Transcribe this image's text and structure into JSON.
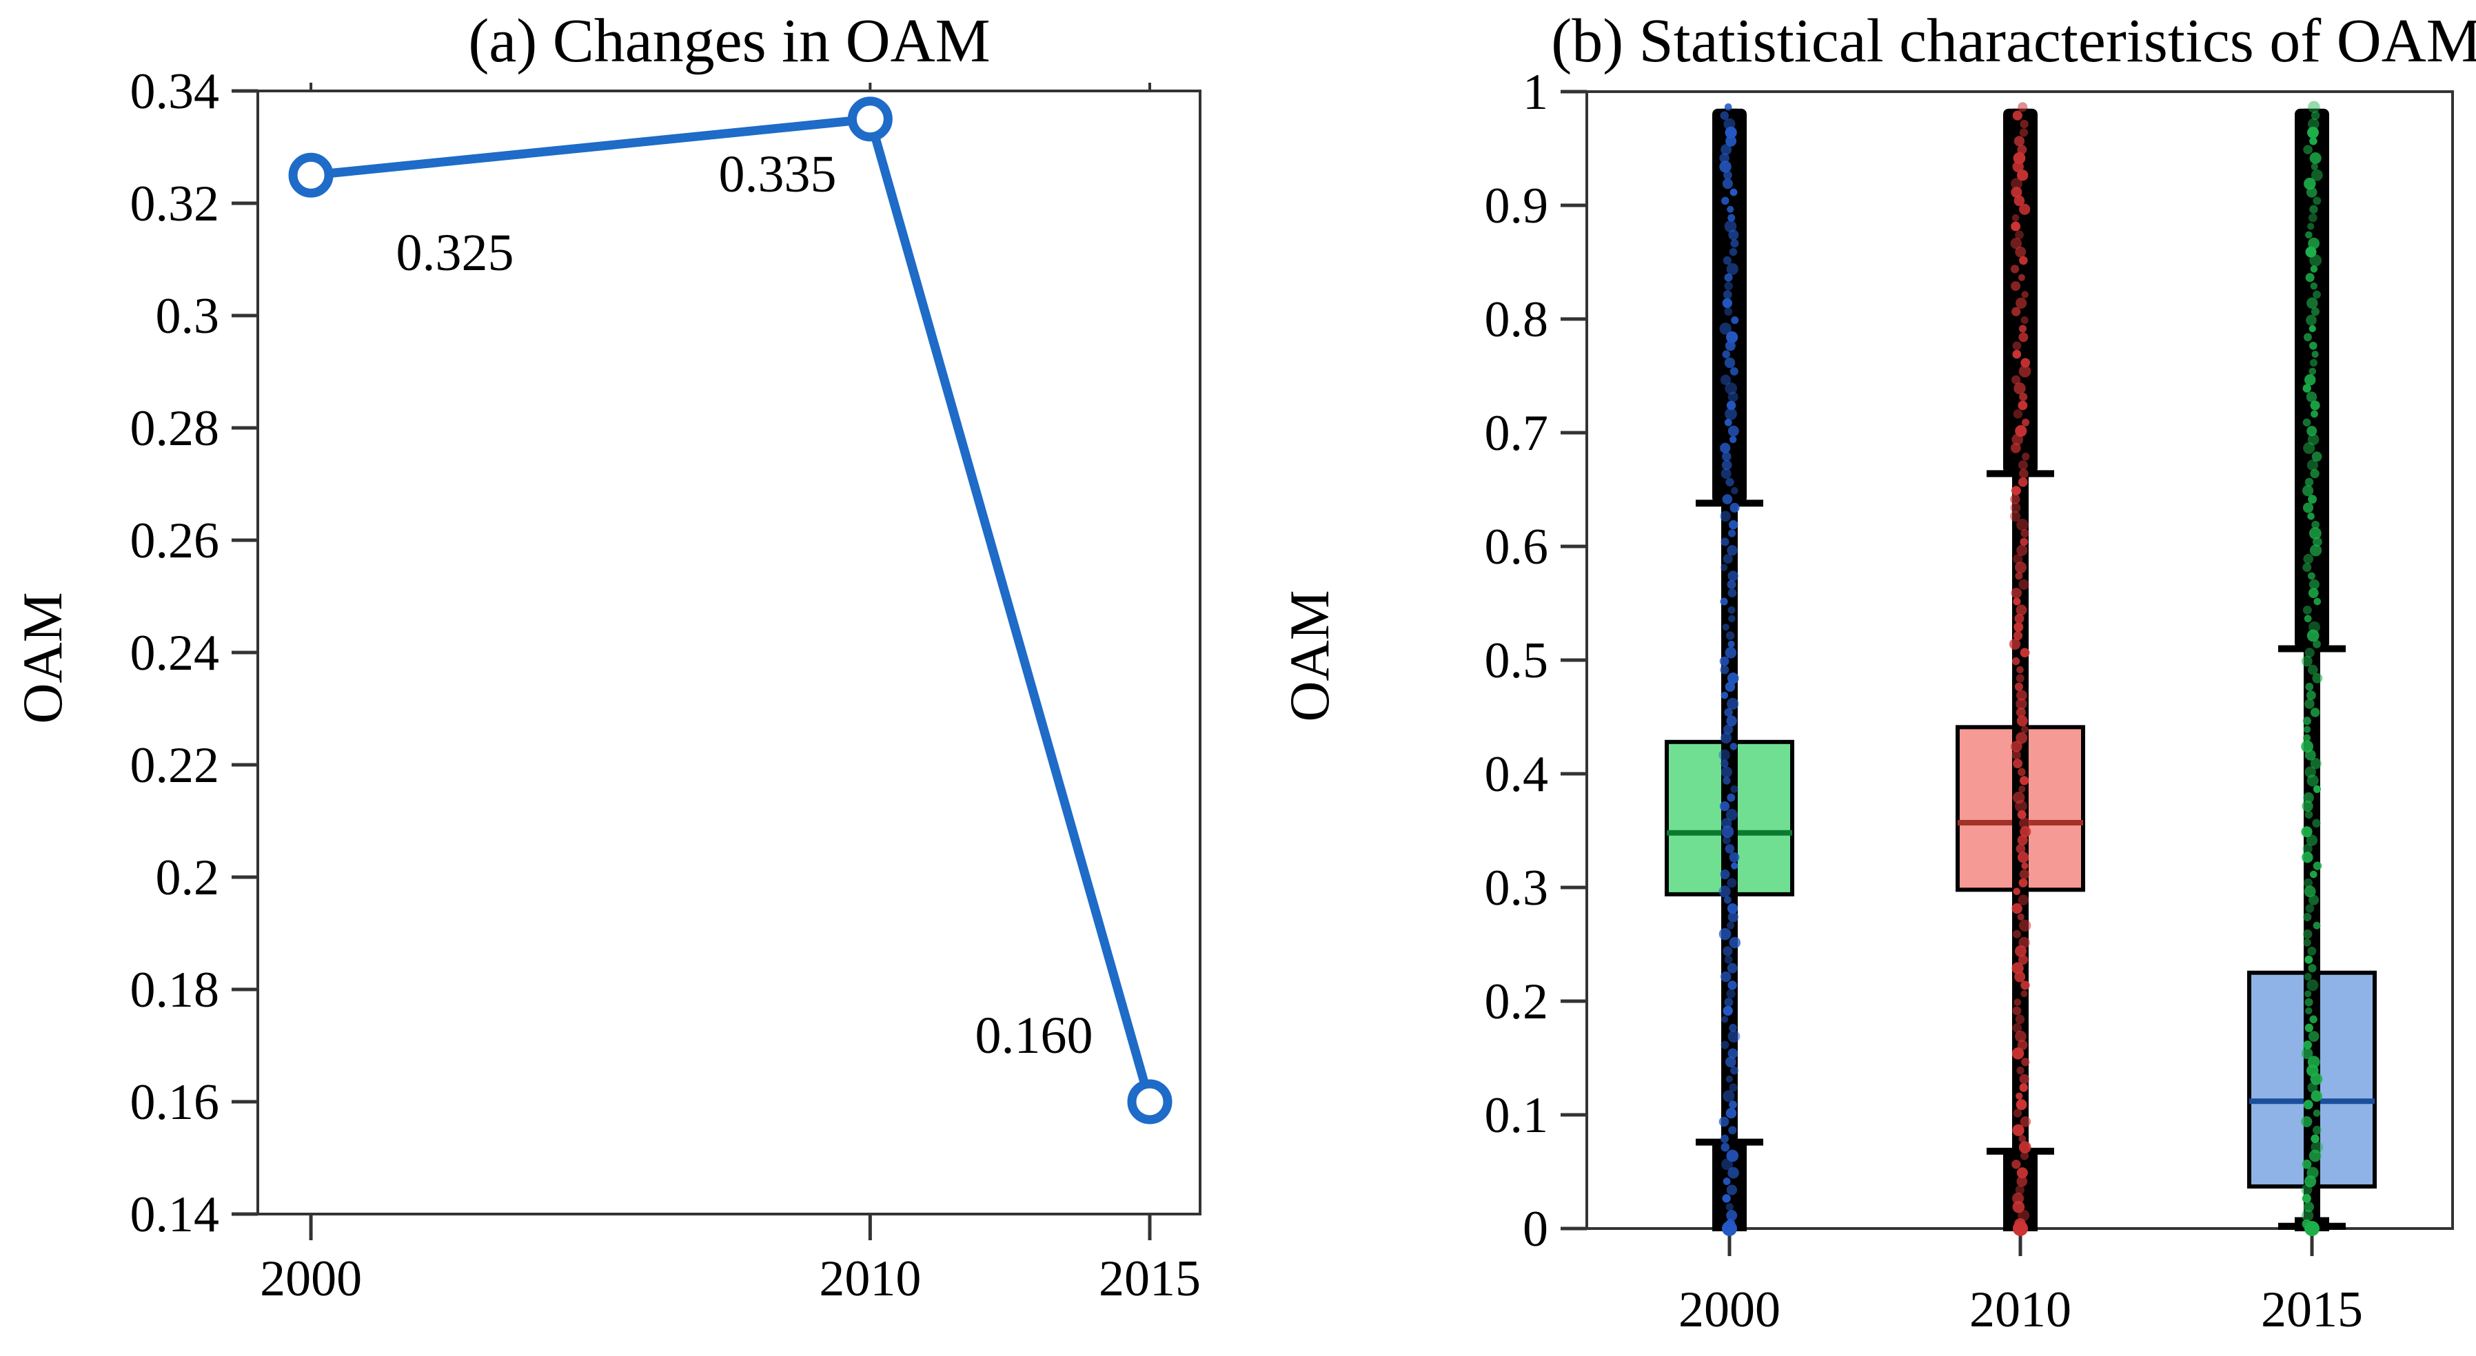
{
  "figure": {
    "background": "#ffffff",
    "frame_color": "#333333"
  },
  "panel_a": {
    "title": "(a) Changes in OAM",
    "y_axis_label": "OAM"
  },
  "panel_b": {
    "title": "(b) Statistical characteristics of OAM",
    "y_axis_label": "OAM"
  },
  "chart_data": [
    {
      "type": "line",
      "panel": "a",
      "title": "(a) Changes in OAM",
      "xlabel": "",
      "ylabel": "OAM",
      "x": [
        2000,
        2010,
        2015
      ],
      "values": [
        0.325,
        0.335,
        0.16
      ],
      "point_labels": [
        "0.325",
        "0.335",
        "0.160"
      ],
      "x_tick_labels": [
        "2000",
        "2010",
        "2015"
      ],
      "y_tick_values": [
        0.34,
        0.32,
        0.3,
        0.28,
        0.26,
        0.24,
        0.22,
        0.2,
        0.18,
        0.16,
        0.14
      ],
      "y_tick_labels": [
        "0.34",
        "0.32",
        "0.3",
        "0.28",
        "0.26",
        "0.24",
        "0.22",
        "0.2",
        "0.18",
        "0.16",
        "0.14"
      ],
      "xlim": [
        1999.05,
        2015.9
      ],
      "ylim": [
        0.14,
        0.34
      ],
      "grid": false,
      "line_color": "#1e6bc8",
      "marker": "open-circle"
    },
    {
      "type": "box",
      "panel": "b",
      "title": "(b) Statistical characteristics of OAM",
      "xlabel": "",
      "ylabel": "OAM",
      "categories": [
        "2000",
        "2010",
        "2015"
      ],
      "y_tick_values": [
        1,
        0.9,
        0.8,
        0.7,
        0.6,
        0.5,
        0.4,
        0.3,
        0.2,
        0.1,
        0
      ],
      "y_tick_labels": [
        "1",
        "0.9",
        "0.8",
        "0.7",
        "0.6",
        "0.5",
        "0.4",
        "0.3",
        "0.2",
        "0.1",
        "0"
      ],
      "ylim": [
        0,
        1
      ],
      "grid": false,
      "series": [
        {
          "name": "2000",
          "whisker_low": 0.076,
          "q1": 0.294,
          "median": 0.348,
          "q3": 0.428,
          "whisker_high": 0.638,
          "outlier_low_range": [
            0.0,
            0.076
          ],
          "outlier_high_range": [
            0.638,
            0.985
          ],
          "box_color": "#71df92",
          "median_color": "#0c7a2e",
          "dot_color": "#2458c4"
        },
        {
          "name": "2010",
          "whisker_low": 0.068,
          "q1": 0.298,
          "median": 0.357,
          "q3": 0.441,
          "whisker_high": 0.664,
          "outlier_low_range": [
            0.0,
            0.068
          ],
          "outlier_high_range": [
            0.664,
            0.985
          ],
          "box_color": "#f59a94",
          "median_color": "#a03228",
          "dot_color": "#cc3333"
        },
        {
          "name": "2015",
          "whisker_low": 0.002,
          "q1": 0.037,
          "median": 0.112,
          "q3": 0.225,
          "whisker_high": 0.51,
          "outlier_low_range": [
            0.0,
            0.01
          ],
          "outlier_high_range": [
            0.51,
            0.985
          ],
          "box_color": "#8fb3e6",
          "median_color": "#1c4e9c",
          "dot_color": "#1db04a"
        }
      ]
    }
  ]
}
